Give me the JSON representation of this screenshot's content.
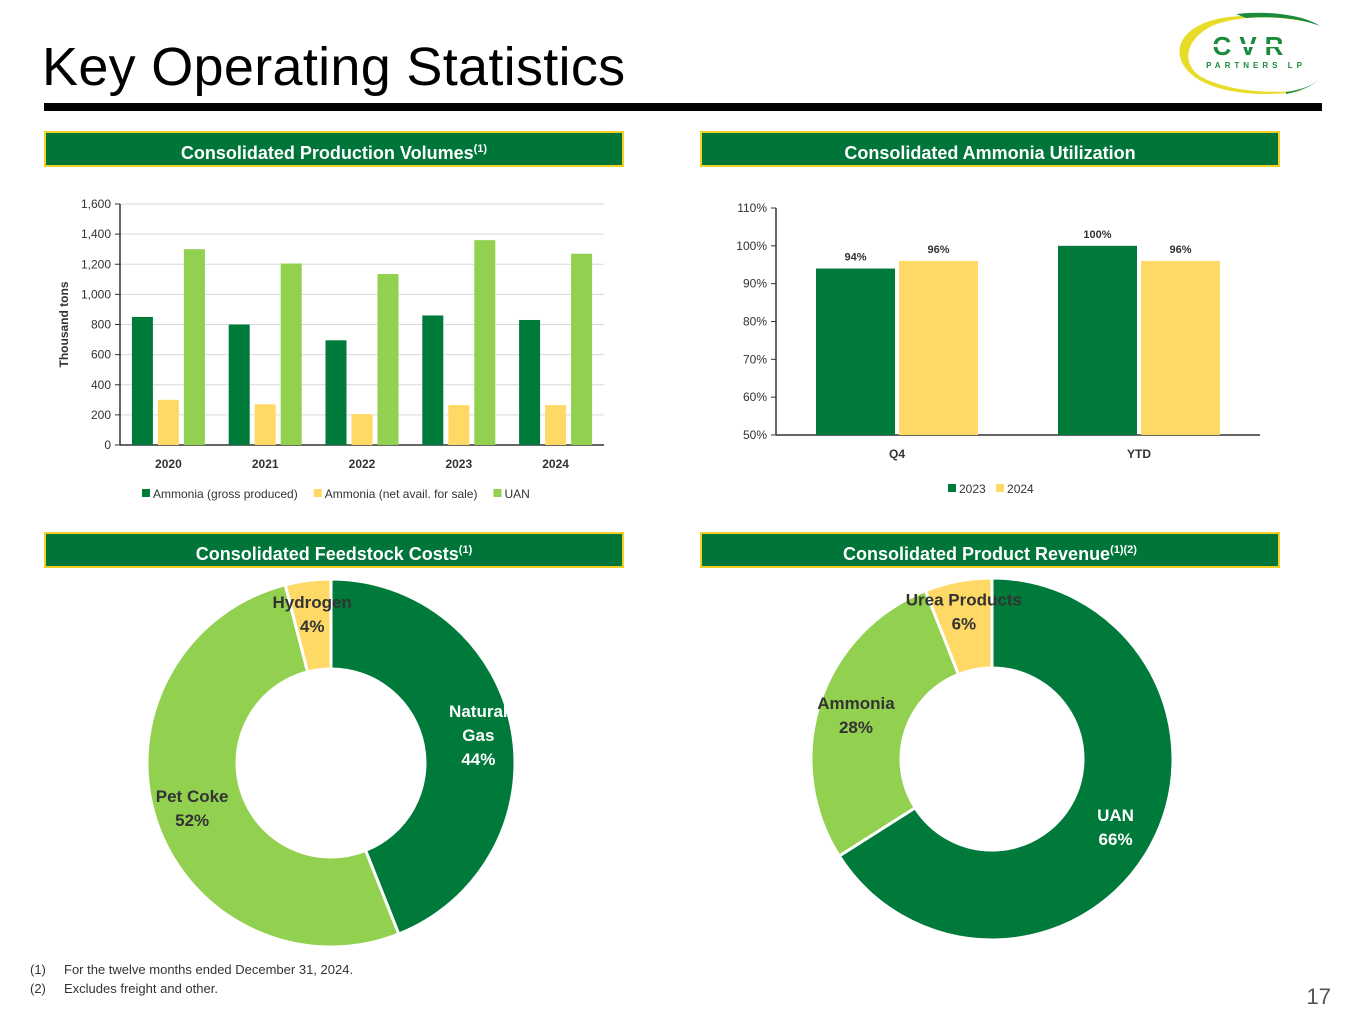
{
  "page": {
    "title": "Key Operating Statistics",
    "page_number": "17",
    "logo": {
      "top_text": "CVR",
      "bottom_text": "PARTNERS LP"
    }
  },
  "colors": {
    "dark_green": "#007a3b",
    "light_green": "#92d050",
    "yellow": "#ffd966",
    "header_bg": "#00753a",
    "header_border": "#f2d024"
  },
  "sections": {
    "production": {
      "title": "Consolidated Production Volumes",
      "sup": "(1)"
    },
    "utilization": {
      "title": "Consolidated Ammonia Utilization",
      "sup": ""
    },
    "feedstock": {
      "title": "Consolidated Feedstock Costs",
      "sup": "(1)"
    },
    "revenue": {
      "title": "Consolidated Product Revenue",
      "sup": "(1)(2)"
    }
  },
  "chart_data": [
    {
      "id": "production",
      "type": "bar",
      "title": "Consolidated Production Volumes(1)",
      "ylabel": "Thousand tons",
      "ylim": [
        0,
        1600
      ],
      "yticks": [
        0,
        200,
        400,
        600,
        800,
        1000,
        1200,
        1400,
        1600
      ],
      "ytick_labels": [
        "0",
        "200",
        "400",
        "600",
        "800",
        "1,000",
        "1,200",
        "1,400",
        "1,600"
      ],
      "categories": [
        "2020",
        "2021",
        "2022",
        "2023",
        "2024"
      ],
      "series": [
        {
          "name": "Ammonia (gross produced)",
          "color": "#007a3b",
          "values": [
            850,
            800,
            695,
            860,
            830
          ]
        },
        {
          "name": "Ammonia (net avail. for sale)",
          "color": "#ffd966",
          "values": [
            300,
            270,
            205,
            265,
            265
          ]
        },
        {
          "name": "UAN",
          "color": "#92d050",
          "values": [
            1300,
            1205,
            1135,
            1360,
            1270
          ]
        }
      ],
      "legend": "bottom",
      "grid": true
    },
    {
      "id": "utilization",
      "type": "bar",
      "title": "Consolidated Ammonia Utilization",
      "ylim": [
        50,
        110
      ],
      "yticks": [
        50,
        60,
        70,
        80,
        90,
        100,
        110
      ],
      "ytick_labels": [
        "50%",
        "60%",
        "70%",
        "80%",
        "90%",
        "100%",
        "110%"
      ],
      "categories": [
        "Q4",
        "YTD"
      ],
      "series": [
        {
          "name": "2023",
          "color": "#007a3b",
          "values": [
            94,
            100
          ],
          "labels": [
            "94%",
            "100%"
          ]
        },
        {
          "name": "2024",
          "color": "#ffd966",
          "values": [
            96,
            96
          ],
          "labels": [
            "96%",
            "96%"
          ]
        }
      ],
      "legend": "bottom",
      "grid": false
    },
    {
      "id": "feedstock",
      "type": "pie",
      "title": "Consolidated Feedstock Costs(1)",
      "slices": [
        {
          "name": "Natural Gas",
          "lines": [
            "Natural",
            "Gas"
          ],
          "value": 44,
          "label": "44%",
          "color": "#007a3b",
          "text_color": "#ffffff"
        },
        {
          "name": "Pet Coke",
          "lines": [
            "Pet Coke"
          ],
          "value": 52,
          "label": "52%",
          "color": "#92d050",
          "text_color": "#333333"
        },
        {
          "name": "Hydrogen",
          "lines": [
            "Hydrogen"
          ],
          "value": 4,
          "label": "4%",
          "color": "#ffd966",
          "text_color": "#333333"
        }
      ]
    },
    {
      "id": "revenue",
      "type": "pie",
      "title": "Consolidated Product Revenue(1)(2)",
      "slices": [
        {
          "name": "UAN",
          "lines": [
            "UAN"
          ],
          "value": 66,
          "label": "66%",
          "color": "#007a3b",
          "text_color": "#ffffff"
        },
        {
          "name": "Ammonia",
          "lines": [
            "Ammonia"
          ],
          "value": 28,
          "label": "28%",
          "color": "#92d050",
          "text_color": "#333333"
        },
        {
          "name": "Urea Products",
          "lines": [
            "Urea Products"
          ],
          "value": 6,
          "label": "6%",
          "color": "#ffd966",
          "text_color": "#333333"
        }
      ]
    }
  ],
  "footnotes": [
    {
      "num": "(1)",
      "text": "For the twelve months ended December 31, 2024."
    },
    {
      "num": "(2)",
      "text": "Excludes freight and other."
    }
  ]
}
